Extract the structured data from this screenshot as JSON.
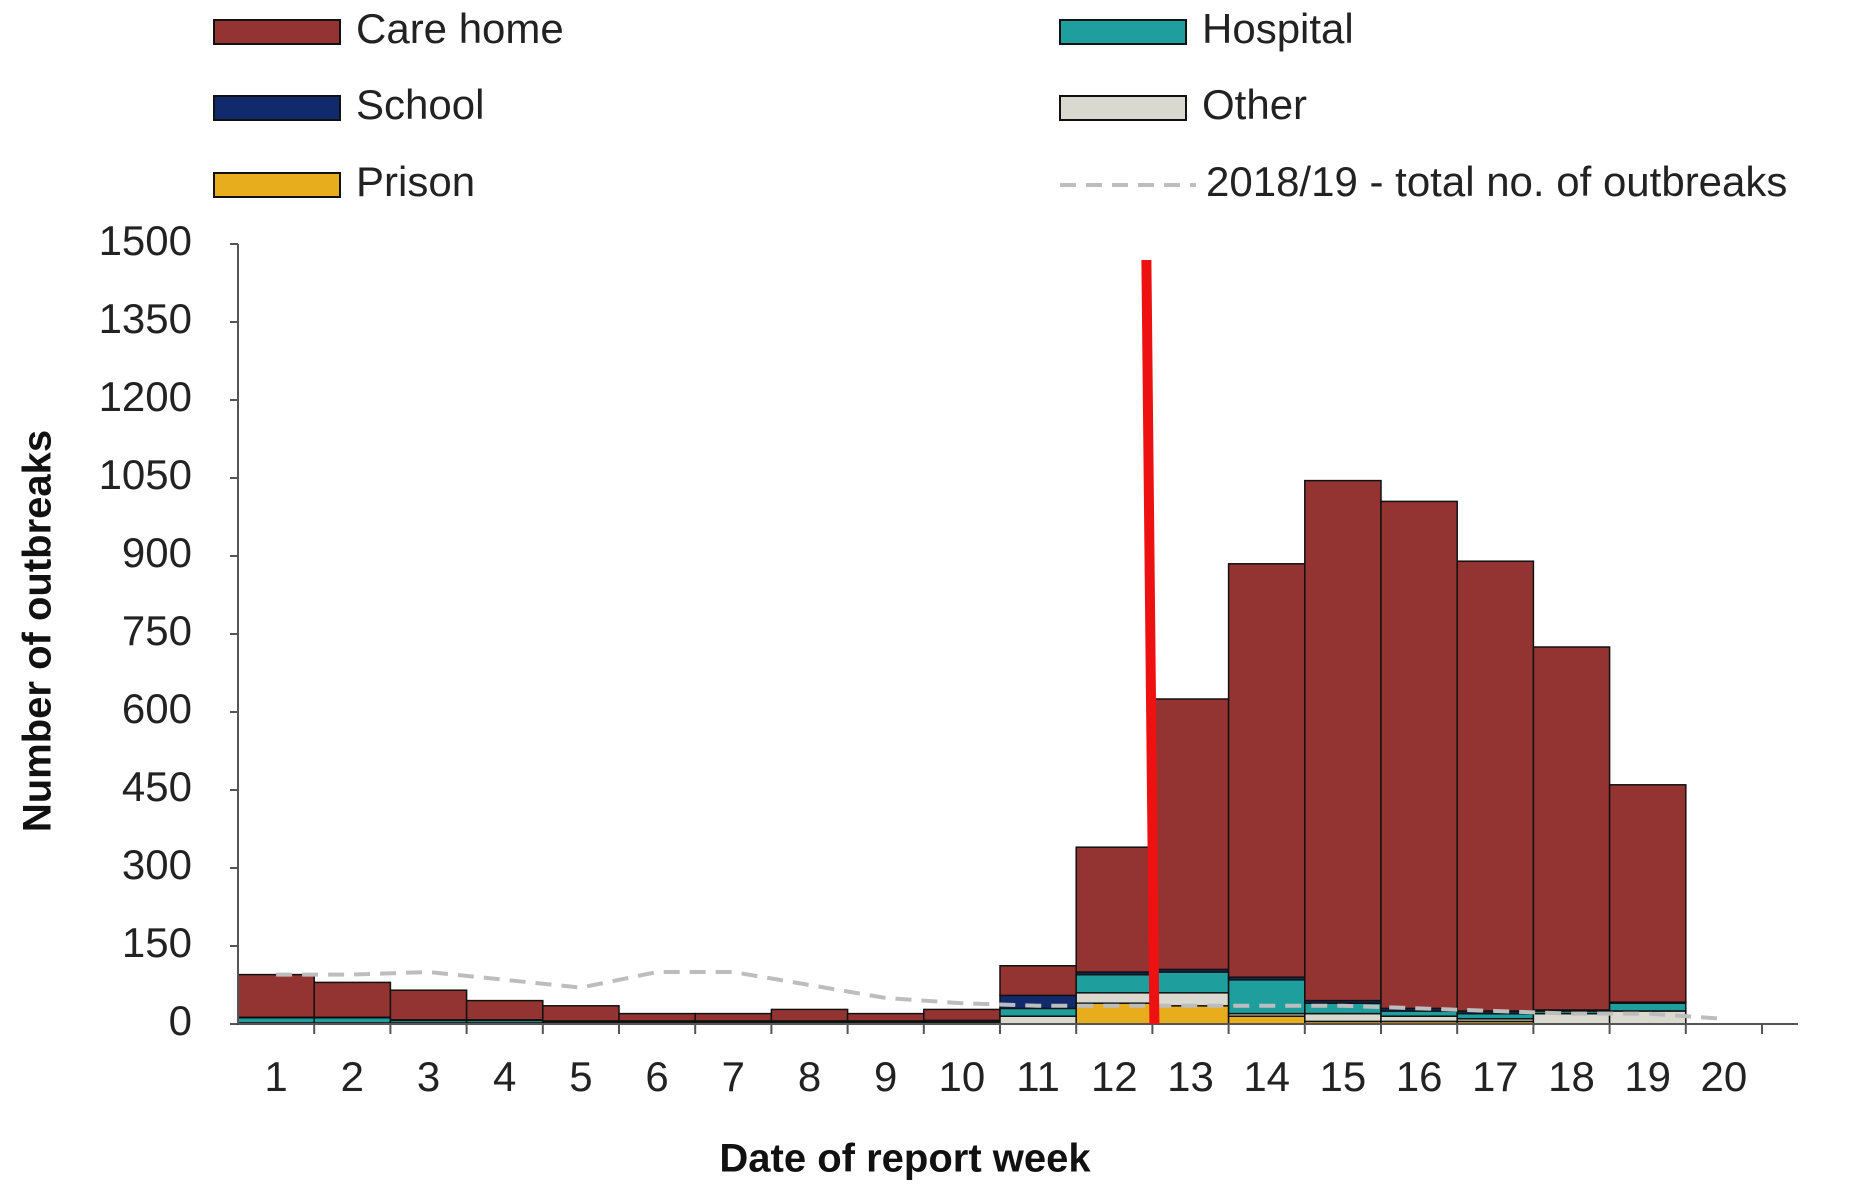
{
  "chart_data": {
    "type": "stacked-bar",
    "x_label": "Date of report week",
    "y_label": "Number of outbreaks",
    "categories": [
      "1",
      "2",
      "3",
      "4",
      "5",
      "6",
      "7",
      "8",
      "9",
      "10",
      "11",
      "12",
      "13",
      "14",
      "15",
      "16",
      "17",
      "18",
      "19",
      "20"
    ],
    "series": [
      {
        "name": "Prison",
        "color": "#e8ad1c",
        "values": [
          0,
          0,
          0,
          0,
          0,
          0,
          0,
          0,
          0,
          0,
          0,
          40,
          35,
          15,
          5,
          5,
          5,
          0,
          0,
          0
        ]
      },
      {
        "name": "Other",
        "color": "#d9d9cf",
        "values": [
          2,
          2,
          2,
          2,
          2,
          2,
          2,
          2,
          2,
          2,
          15,
          20,
          25,
          5,
          15,
          10,
          5,
          20,
          25,
          0
        ]
      },
      {
        "name": "Hospital",
        "color": "#1f9e9e",
        "values": [
          10,
          10,
          5,
          5,
          3,
          3,
          3,
          3,
          3,
          3,
          15,
          35,
          40,
          65,
          20,
          10,
          10,
          5,
          15,
          0
        ]
      },
      {
        "name": "School",
        "color": "#102a6b",
        "values": [
          1,
          1,
          1,
          1,
          1,
          1,
          1,
          1,
          1,
          2,
          25,
          5,
          5,
          5,
          5,
          5,
          5,
          2,
          2,
          0
        ]
      },
      {
        "name": "Care home",
        "color": "#943432",
        "values": [
          82,
          67,
          57,
          37,
          29,
          14,
          14,
          22,
          14,
          21,
          57,
          240,
          520,
          795,
          1000,
          975,
          865,
          698,
          418,
          0
        ]
      }
    ],
    "line": {
      "name": "2018/19 - total no. of outbreaks",
      "color": "#bdbdbd",
      "values": [
        95,
        95,
        100,
        85,
        70,
        100,
        100,
        75,
        50,
        40,
        35,
        35,
        35,
        35,
        35,
        30,
        25,
        20,
        20,
        10
      ]
    },
    "ylim": [
      0,
      1500
    ],
    "yticks": [
      0,
      150,
      300,
      450,
      600,
      750,
      900,
      1050,
      1200,
      1350,
      1500
    ]
  }
}
